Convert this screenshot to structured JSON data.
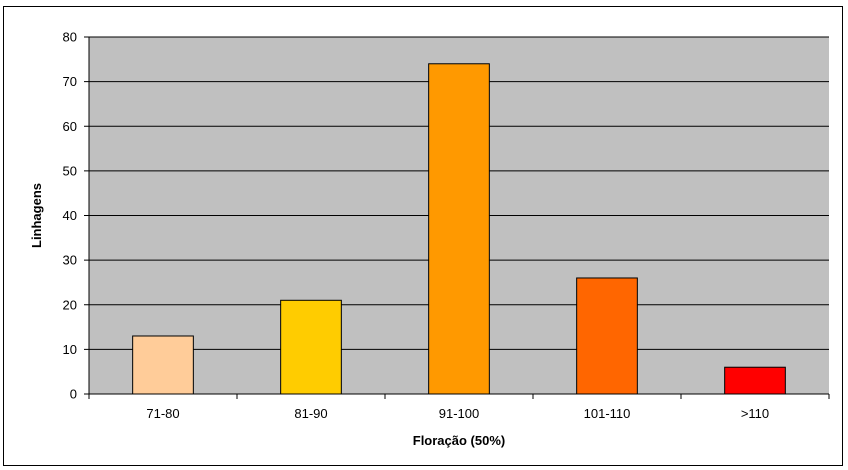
{
  "chart_data": {
    "type": "bar",
    "title": "",
    "xlabel": "Floração (50%)",
    "ylabel": "Linhagens",
    "categories": [
      "71-80",
      "81-90",
      "91-100",
      "101-110",
      ">110"
    ],
    "values": [
      13,
      21,
      74,
      26,
      6
    ],
    "bar_colors": [
      "#FFCC99",
      "#FFCC00",
      "#FF9900",
      "#FF6600",
      "#FF0000"
    ],
    "ylim": [
      0,
      80
    ],
    "yticks": [
      0,
      10,
      20,
      30,
      40,
      50,
      60,
      70,
      80
    ],
    "grid": true,
    "plot_background": "#C0C0C0",
    "legend": "none"
  }
}
